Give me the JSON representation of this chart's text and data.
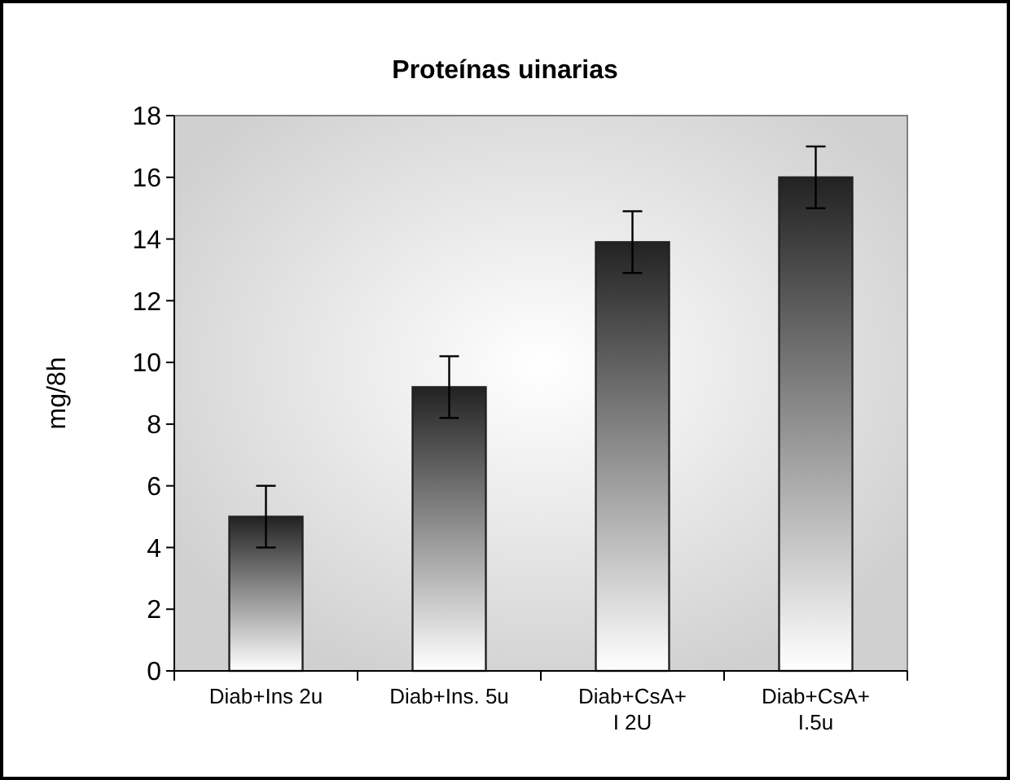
{
  "chart_data": {
    "type": "bar",
    "title": "Proteínas uinarias",
    "ylabel": "mg/8h",
    "categories": [
      "Diab+Ins 2u",
      "Diab+Ins. 5u",
      "Diab+CsA+\nI 2U",
      "Diab+CsA+\nI.5u"
    ],
    "values": [
      5.0,
      9.2,
      13.9,
      16.0
    ],
    "errors": [
      1.0,
      1.0,
      1.0,
      1.0
    ],
    "color": "#222222",
    "ylim": [
      0,
      18
    ],
    "yticks": [
      0,
      2,
      4,
      6,
      8,
      10,
      12,
      14,
      16,
      18
    ],
    "grid": false
  }
}
